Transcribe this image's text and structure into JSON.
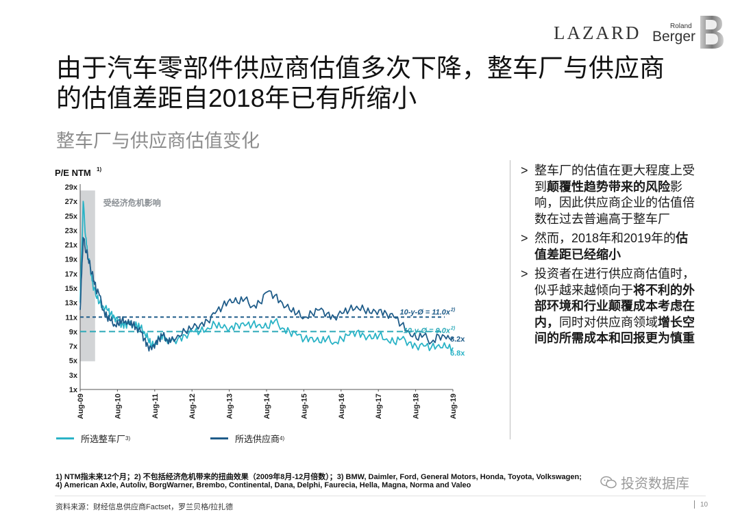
{
  "brand": {
    "lazard": "LAZARD",
    "roland": "Roland",
    "berger": "Berger"
  },
  "title": {
    "line1": "由于汽车零部件供应商估值多次下降，整车厂与供应商",
    "line2": "的估值差距自2018年已有所缩小"
  },
  "subtitle": "整车厂与供应商估值变化",
  "chart_data": {
    "type": "line",
    "ylabel": "P/E NTM",
    "ylabel_sup": "1)",
    "yticks": [
      "29x",
      "27x",
      "25x",
      "23x",
      "21x",
      "19x",
      "17x",
      "15x",
      "13x",
      "11x",
      "9x",
      "7x",
      "5x",
      "3x",
      "1x"
    ],
    "ylim": [
      1,
      29
    ],
    "xticks": [
      "Aug-09",
      "Aug-10",
      "Aug-11",
      "Aug-12",
      "Aug-13",
      "Aug-14",
      "Aug-15",
      "Aug-16",
      "Aug-17",
      "Aug-18",
      "Aug-19"
    ],
    "shaded_label": "受经济危机影响",
    "shaded_range": [
      2009.58,
      2009.98
    ],
    "reference_lines": [
      {
        "label": "10-y-Ø = 11.0x",
        "sup": "2)",
        "value": 11.0,
        "color": "#1f5c89"
      },
      {
        "label": "10-y-Ø = 9.0x",
        "sup": "2)",
        "value": 9.0,
        "color": "#2aa9b8"
      }
    ],
    "end_labels": [
      {
        "text": "8.2x",
        "value": 8.2
      },
      {
        "text": "6.8x",
        "value": 6.8
      }
    ],
    "series": [
      {
        "name": "所选整车厂",
        "sup": "3)",
        "color": "#2ab3c6",
        "x": [
          2009.58,
          2009.62,
          2009.66,
          2009.7,
          2009.75,
          2009.8,
          2009.85,
          2009.9,
          2009.95,
          2010.0,
          2010.1,
          2010.2,
          2010.3,
          2010.4,
          2010.5,
          2010.6,
          2010.7,
          2010.8,
          2010.9,
          2011.0,
          2011.1,
          2011.2,
          2011.3,
          2011.4,
          2011.5,
          2011.6,
          2011.7,
          2011.8,
          2011.9,
          2012.0,
          2012.2,
          2012.4,
          2012.6,
          2012.8,
          2013.0,
          2013.2,
          2013.4,
          2013.6,
          2013.8,
          2014.0,
          2014.2,
          2014.4,
          2014.6,
          2014.8,
          2015.0,
          2015.2,
          2015.4,
          2015.6,
          2015.8,
          2016.0,
          2016.2,
          2016.4,
          2016.6,
          2016.8,
          2017.0,
          2017.2,
          2017.4,
          2017.6,
          2017.8,
          2018.0,
          2018.2,
          2018.4,
          2018.6,
          2018.8,
          2019.0,
          2019.2,
          2019.4,
          2019.58
        ],
        "values": [
          13,
          20,
          27,
          24,
          21,
          19,
          18,
          16,
          15,
          14,
          13,
          12.5,
          12,
          11.5,
          11,
          10.5,
          10,
          10,
          10,
          10,
          9.8,
          9.5,
          9,
          8,
          7,
          7.5,
          8,
          8.5,
          8,
          7.5,
          8,
          8.5,
          9,
          9,
          9.5,
          10,
          9.5,
          9.5,
          10,
          9.8,
          10,
          10,
          9.5,
          10.5,
          9.5,
          9,
          8.5,
          8,
          8.2,
          7.5,
          8,
          7.5,
          8,
          8.5,
          9,
          8.5,
          8,
          8.5,
          8,
          7.5,
          8,
          7.5,
          7,
          7,
          6.8,
          7.2,
          6.8,
          6.8
        ]
      },
      {
        "name": "所选供应商",
        "sup": "4)",
        "color": "#1f5c89",
        "x": [
          2009.58,
          2009.62,
          2009.66,
          2009.7,
          2009.75,
          2009.8,
          2009.85,
          2009.9,
          2009.95,
          2010.0,
          2010.1,
          2010.2,
          2010.3,
          2010.4,
          2010.5,
          2010.6,
          2010.7,
          2010.8,
          2010.9,
          2011.0,
          2011.1,
          2011.2,
          2011.3,
          2011.4,
          2011.5,
          2011.6,
          2011.7,
          2011.8,
          2011.9,
          2012.0,
          2012.2,
          2012.4,
          2012.6,
          2012.8,
          2013.0,
          2013.2,
          2013.4,
          2013.6,
          2013.8,
          2014.0,
          2014.2,
          2014.4,
          2014.6,
          2014.8,
          2015.0,
          2015.2,
          2015.4,
          2015.6,
          2015.8,
          2016.0,
          2016.2,
          2016.4,
          2016.6,
          2016.8,
          2017.0,
          2017.2,
          2017.4,
          2017.6,
          2017.8,
          2018.0,
          2018.2,
          2018.4,
          2018.6,
          2018.8,
          2019.0,
          2019.2,
          2019.4,
          2019.58
        ],
        "values": [
          12,
          17,
          22,
          21,
          20,
          19,
          18,
          17,
          16,
          15,
          14,
          12,
          11,
          10.5,
          10,
          10,
          10.5,
          10.5,
          10,
          10,
          9.5,
          9,
          8,
          7,
          6.5,
          7.5,
          8,
          8.5,
          8,
          7.5,
          8.5,
          9,
          9.5,
          10,
          10.5,
          11.5,
          12.5,
          13.5,
          13,
          13.5,
          12.5,
          13,
          14.5,
          14,
          13,
          12,
          11.5,
          11,
          11.5,
          12,
          11.5,
          11,
          11.5,
          12,
          12.5,
          12,
          11.5,
          12,
          11.5,
          11,
          10,
          9,
          8,
          8.5,
          7.5,
          8.5,
          8,
          8.2
        ]
      }
    ]
  },
  "bullets": [
    [
      {
        "t": "整车厂的估值在更大程度上受到",
        "b": false
      },
      {
        "t": "颠覆性趋势带来的风险",
        "b": true
      },
      {
        "t": "影响，因此供应商企业的估值倍数在过去普遍高于整车厂",
        "b": false
      }
    ],
    [
      {
        "t": "然而，2018年和2019年的",
        "b": false
      },
      {
        "t": "估值差距已经缩小",
        "b": true
      }
    ],
    [
      {
        "t": "投资者在进行供应商估值时，似乎越来越倾向于",
        "b": false
      },
      {
        "t": "将不利的外部环境和行业颠覆成本考虑在内，",
        "b": true
      },
      {
        "t": "同时对供应商领域",
        "b": false
      },
      {
        "t": "增长空间的所需成本和回报更为慎重",
        "b": true
      }
    ]
  ],
  "bullet_mark": ">",
  "footnotes": {
    "line1": "1) NTM指未来12个月；2) 不包括经济危机带来的扭曲效果（2009年8月-12月倍数）；3) BMW, Daimler, Ford, General Motors, Honda, Toyota, Volkswagen;",
    "line2": "4) American Axle, Autoliv, BorgWarner, Brembo, Continental, Dana, Delphi, Faurecia, Hella, Magna, Norma and Valeo"
  },
  "source": "资料来源：财经信息供应商Factset，罗兰贝格/拉扎德",
  "page_number": "10",
  "watermark": "投资数据库"
}
